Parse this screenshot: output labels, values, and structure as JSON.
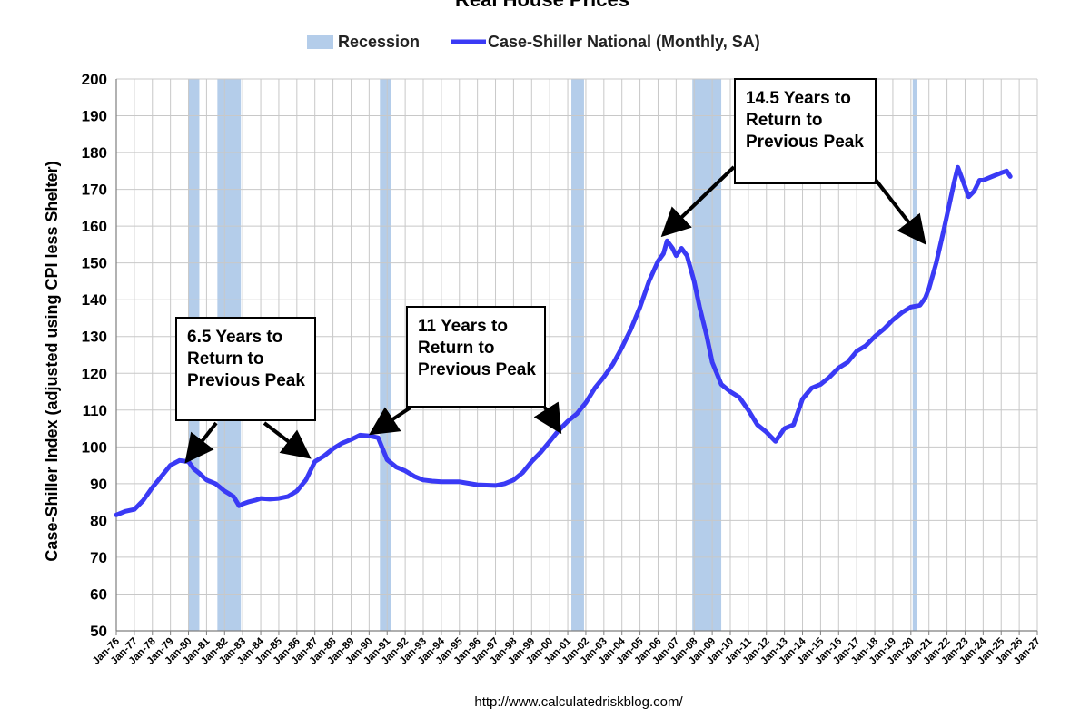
{
  "chart_data": {
    "type": "line",
    "title": "Real House Prices",
    "ylabel": "Case-Shiller Index (adjusted using CPI less Shelter)",
    "ylim": [
      50,
      200
    ],
    "yticks": [
      50,
      60,
      70,
      80,
      90,
      100,
      110,
      120,
      130,
      140,
      150,
      160,
      170,
      180,
      190,
      200
    ],
    "xlim": [
      1976,
      2027
    ],
    "xticks": [
      "Jan-76",
      "Jan-77",
      "Jan-78",
      "Jan-79",
      "Jan-80",
      "Jan-81",
      "Jan-82",
      "Jan-83",
      "Jan-84",
      "Jan-85",
      "Jan-86",
      "Jan-87",
      "Jan-88",
      "Jan-89",
      "Jan-90",
      "Jan-91",
      "Jan-92",
      "Jan-93",
      "Jan-94",
      "Jan-95",
      "Jan-96",
      "Jan-97",
      "Jan-98",
      "Jan-99",
      "Jan-00",
      "Jan-01",
      "Jan-02",
      "Jan-03",
      "Jan-04",
      "Jan-05",
      "Jan-06",
      "Jan-07",
      "Jan-08",
      "Jan-09",
      "Jan-10",
      "Jan-11",
      "Jan-12",
      "Jan-13",
      "Jan-14",
      "Jan-15",
      "Jan-16",
      "Jan-17",
      "Jan-18",
      "Jan-19",
      "Jan-20",
      "Jan-21",
      "Jan-22",
      "Jan-23",
      "Jan-24",
      "Jan-25",
      "Jan-26",
      "Jan-27"
    ],
    "grid": true,
    "legend_position": "top",
    "legend": [
      {
        "label": "Recession",
        "kind": "band",
        "color": "#b4cdea"
      },
      {
        "label": "Case-Shiller National (Monthly, SA)",
        "kind": "line",
        "color": "#3a3af5"
      }
    ],
    "recessions": [
      [
        1980.0,
        1980.6
      ],
      [
        1981.6,
        1982.9
      ],
      [
        1990.6,
        1991.2
      ],
      [
        2001.2,
        2001.9
      ],
      [
        2007.9,
        2009.5
      ],
      [
        2020.1,
        2020.35
      ]
    ],
    "series": [
      {
        "name": "Case-Shiller National (Monthly, SA)",
        "color": "#3a3af5",
        "x": [
          1976.0,
          1976.5,
          1977.0,
          1977.5,
          1978.0,
          1978.5,
          1979.0,
          1979.5,
          1980.0,
          1980.3,
          1980.6,
          1981.0,
          1981.5,
          1982.0,
          1982.5,
          1982.8,
          1983.0,
          1983.3,
          1983.7,
          1984.0,
          1984.5,
          1985.0,
          1985.5,
          1986.0,
          1986.5,
          1987.0,
          1987.5,
          1988.0,
          1988.5,
          1989.0,
          1989.5,
          1990.0,
          1990.5,
          1991.0,
          1991.5,
          1992.0,
          1992.5,
          1993.0,
          1993.5,
          1994.0,
          1995.0,
          1996.0,
          1997.0,
          1997.5,
          1998.0,
          1998.5,
          1999.0,
          1999.5,
          2000.0,
          2000.5,
          2001.0,
          2001.5,
          2002.0,
          2002.5,
          2003.0,
          2003.5,
          2004.0,
          2004.5,
          2005.0,
          2005.5,
          2006.0,
          2006.3,
          2006.5,
          2006.8,
          2007.0,
          2007.3,
          2007.6,
          2008.0,
          2008.3,
          2008.7,
          2009.0,
          2009.5,
          2010.0,
          2010.5,
          2011.0,
          2011.5,
          2012.0,
          2012.5,
          2013.0,
          2013.5,
          2014.0,
          2014.5,
          2015.0,
          2015.5,
          2016.0,
          2016.5,
          2017.0,
          2017.5,
          2018.0,
          2018.5,
          2019.0,
          2019.5,
          2020.0,
          2020.5,
          2020.8,
          2021.0,
          2021.4,
          2021.8,
          2022.0,
          2022.4,
          2022.6,
          2022.9,
          2023.2,
          2023.5,
          2023.8,
          2024.0,
          2024.5,
          2025.0,
          2025.3,
          2025.5
        ],
        "y": [
          81.5,
          82.5,
          83,
          85.5,
          89,
          92,
          95,
          96.3,
          96,
          94,
          92.8,
          91,
          90,
          88,
          86.5,
          84,
          84.5,
          85,
          85.5,
          86,
          85.8,
          86,
          86.5,
          88,
          91,
          96,
          97.5,
          99.5,
          101,
          102,
          103.2,
          103,
          102.5,
          96.5,
          94.5,
          93.5,
          92,
          91,
          90.7,
          90.5,
          90.5,
          89.7,
          89.5,
          90,
          91,
          93,
          96,
          98.5,
          101.5,
          104.5,
          107,
          109,
          112,
          116,
          119,
          122.5,
          127,
          132,
          138,
          145,
          150.5,
          152.5,
          156,
          154,
          152,
          154,
          152,
          145,
          138,
          130,
          123,
          117,
          115,
          113.5,
          110,
          106,
          104,
          101.5,
          105,
          106,
          113,
          116,
          117,
          119,
          121.5,
          123,
          126,
          127.5,
          130,
          132,
          134.5,
          136.5,
          138,
          138.5,
          140.5,
          143,
          150,
          158.5,
          163,
          172,
          176,
          172,
          168,
          169.5,
          172.5,
          172.5,
          173.5,
          174.5,
          175,
          173.5
        ]
      }
    ],
    "annotations": [
      {
        "lines": [
          "6.5 Years to",
          "Return to",
          "Previous Peak"
        ]
      },
      {
        "lines": [
          "11 Years to",
          "Return to",
          "Previous Peak"
        ]
      },
      {
        "lines": [
          "14.5 Years to",
          "Return to",
          "Previous Peak"
        ]
      }
    ]
  },
  "source": "http://www.calculatedriskblog.com/"
}
